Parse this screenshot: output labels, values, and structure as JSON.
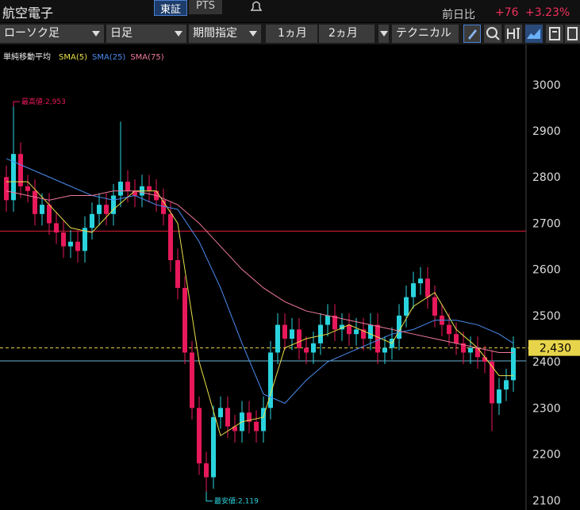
{
  "header": {
    "name": "航空電子",
    "market": "東証",
    "pts": "PTS",
    "change_label": "前日比",
    "change": "+76",
    "change_pct": "+3.23%"
  },
  "toolbar": {
    "chart_type": "ローソク足",
    "period": "日足",
    "range": "期間指定",
    "m1": "1ヵ月",
    "m2": "2ヵ月",
    "technical": "テクニカル"
  },
  "chart_data": {
    "type": "candlestick",
    "legend_title": "単純移動平均",
    "up_color": "#2ad4de",
    "down_color": "#e8195a",
    "open": [
      2800,
      2750,
      2850,
      2780,
      2770,
      2720,
      2740,
      2700,
      2680,
      2650,
      2660,
      2640,
      2690,
      2720,
      2740,
      2720,
      2760,
      2790,
      2770,
      2760,
      2780,
      2770,
      2750,
      2720,
      2620,
      2560,
      2420,
      2300,
      2180,
      2150,
      2280,
      2300,
      2260,
      2250,
      2290,
      2270,
      2250,
      2300,
      2420,
      2480,
      2450,
      2470,
      2430,
      2420,
      2440,
      2480,
      2500,
      2470,
      2480,
      2460,
      2470,
      2450,
      2480,
      2420,
      2430,
      2450,
      2500,
      2540,
      2570,
      2580,
      2540,
      2500,
      2480,
      2460,
      2440,
      2420,
      2430,
      2410,
      2400,
      2310,
      2340,
      2360
    ],
    "high": [
      2825,
      2953,
      2875,
      2805,
      2795,
      2765,
      2765,
      2725,
      2705,
      2685,
      2685,
      2715,
      2745,
      2765,
      2765,
      2785,
      2920,
      2815,
      2795,
      2805,
      2805,
      2795,
      2775,
      2745,
      2645,
      2585,
      2445,
      2325,
      2205,
      2305,
      2325,
      2325,
      2285,
      2315,
      2315,
      2295,
      2325,
      2445,
      2505,
      2505,
      2495,
      2495,
      2455,
      2465,
      2505,
      2525,
      2525,
      2505,
      2505,
      2495,
      2495,
      2505,
      2505,
      2455,
      2475,
      2525,
      2565,
      2595,
      2605,
      2605,
      2565,
      2525,
      2505,
      2485,
      2465,
      2455,
      2455,
      2435,
      2425,
      2365,
      2385,
      2455
    ],
    "low": [
      2725,
      2725,
      2755,
      2745,
      2695,
      2695,
      2675,
      2655,
      2625,
      2625,
      2615,
      2615,
      2665,
      2695,
      2695,
      2695,
      2735,
      2745,
      2735,
      2735,
      2745,
      2725,
      2695,
      2595,
      2535,
      2395,
      2275,
      2155,
      2119,
      2125,
      2255,
      2235,
      2225,
      2225,
      2245,
      2225,
      2225,
      2275,
      2395,
      2425,
      2425,
      2405,
      2395,
      2395,
      2415,
      2455,
      2445,
      2445,
      2435,
      2435,
      2425,
      2425,
      2395,
      2395,
      2405,
      2425,
      2475,
      2515,
      2545,
      2515,
      2475,
      2455,
      2435,
      2415,
      2395,
      2395,
      2385,
      2375,
      2250,
      2285,
      2315,
      2335
    ],
    "close": [
      2750,
      2850,
      2780,
      2770,
      2720,
      2740,
      2700,
      2680,
      2650,
      2660,
      2640,
      2690,
      2720,
      2740,
      2720,
      2760,
      2790,
      2770,
      2760,
      2780,
      2770,
      2750,
      2720,
      2620,
      2560,
      2420,
      2300,
      2180,
      2150,
      2280,
      2300,
      2260,
      2250,
      2290,
      2270,
      2250,
      2300,
      2420,
      2480,
      2450,
      2470,
      2430,
      2420,
      2440,
      2480,
      2500,
      2470,
      2480,
      2460,
      2470,
      2450,
      2480,
      2420,
      2430,
      2450,
      2500,
      2540,
      2570,
      2580,
      2540,
      2500,
      2480,
      2460,
      2440,
      2420,
      2430,
      2410,
      2400,
      2310,
      2340,
      2360,
      2430
    ],
    "sma_index": [
      0,
      3,
      6,
      9,
      12,
      15,
      18,
      21,
      24,
      27,
      30,
      33,
      36,
      39,
      42,
      45,
      48,
      51,
      54,
      57,
      60,
      63,
      66,
      69,
      71
    ],
    "series": [
      {
        "name": "SMA(5)",
        "color": "#e8e04a",
        "values": [
          2790,
          2790,
          2740,
          2690,
          2680,
          2730,
          2770,
          2770,
          2700,
          2400,
          2240,
          2270,
          2280,
          2430,
          2450,
          2460,
          2480,
          2460,
          2440,
          2520,
          2550,
          2470,
          2430,
          2370,
          2370
        ]
      },
      {
        "name": "SMA(25)",
        "color": "#4a8cf0",
        "values": [
          2840,
          2820,
          2800,
          2780,
          2760,
          2750,
          2760,
          2740,
          2730,
          2660,
          2560,
          2440,
          2330,
          2310,
          2360,
          2400,
          2420,
          2440,
          2460,
          2470,
          2490,
          2490,
          2480,
          2460,
          2440
        ]
      },
      {
        "name": "SMA(75)",
        "color": "#f07a9a",
        "values": [
          2770,
          2760,
          2750,
          2760,
          2760,
          2770,
          2770,
          2760,
          2740,
          2700,
          2650,
          2600,
          2560,
          2530,
          2510,
          2500,
          2490,
          2480,
          2470,
          2460,
          2450,
          2440,
          2430,
          2420,
          2420
        ]
      }
    ],
    "hlines": [
      {
        "value": 2683,
        "color": "#e0203c"
      },
      {
        "value": 2430,
        "color": "#e8d44a",
        "dashed": true,
        "label": "2,430"
      },
      {
        "value": 2402,
        "color": "#6ab4d8"
      }
    ],
    "annotations": [
      {
        "text": "最高値:2,953",
        "color": "#e8195a"
      },
      {
        "text": "最安値:2,119",
        "color": "#2ad4de"
      }
    ],
    "ylim": [
      2079,
      3089
    ],
    "yticks": [
      2100,
      2200,
      2300,
      2400,
      2500,
      2600,
      2700,
      2800,
      2900,
      3000
    ]
  }
}
